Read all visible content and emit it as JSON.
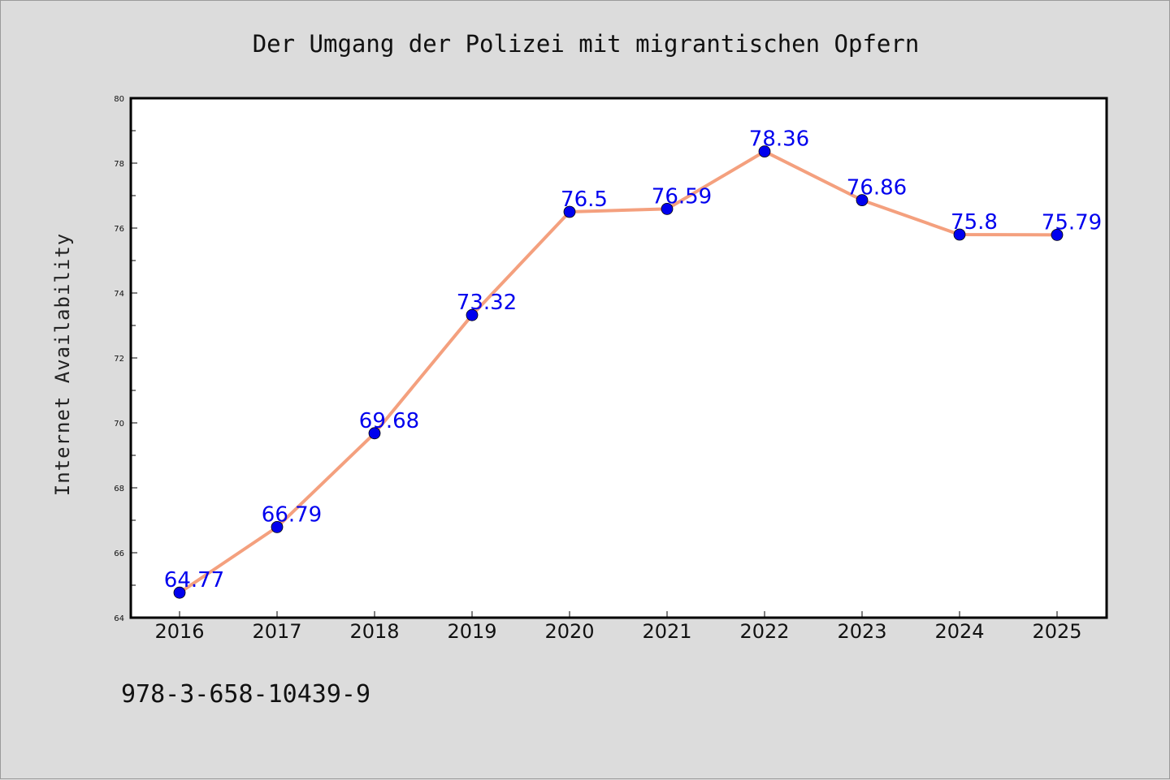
{
  "chart_data": {
    "type": "line",
    "title": "Der Umgang der Polizei mit migrantischen Opfern",
    "ylabel": "Internet Availability",
    "xlabel": "",
    "categories": [
      "2016",
      "2017",
      "2018",
      "2019",
      "2020",
      "2021",
      "2022",
      "2023",
      "2024",
      "2025"
    ],
    "series": [
      {
        "values": [
          64.77,
          66.79,
          69.68,
          73.32,
          76.5,
          76.59,
          78.36,
          76.86,
          75.8,
          75.79
        ],
        "data_labels": [
          "64.77",
          "66.79",
          "69.68",
          "73.32",
          "76.5",
          "76.59",
          "78.36",
          "76.86",
          "75.8",
          "75.79"
        ]
      }
    ],
    "ylim": [
      64,
      80
    ],
    "y_ticks": [
      "64",
      "66",
      "68",
      "70",
      "72",
      "74",
      "76",
      "78",
      "80"
    ],
    "grid": false,
    "legend": "none",
    "colors": {
      "line": "#f4a07e",
      "marker": "#0000ee",
      "data_label": "#0000ee",
      "plot_background": "#ffffff",
      "figure_background": "#dcdcdc"
    }
  },
  "footer": {
    "isbn": "978-3-658-10439-9"
  }
}
